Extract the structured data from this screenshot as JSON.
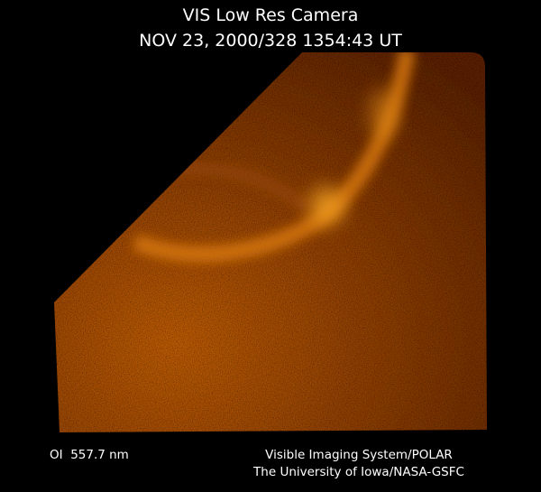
{
  "header": {
    "title": "VIS Low Res Camera",
    "timestamp": "NOV 23, 2000/328 1354:43 UT"
  },
  "footer": {
    "filter": "OI  557.7 nm",
    "credit_line1": "Visible Imaging System/POLAR",
    "credit_line2": "The University of Iowa/NASA-GSFC"
  }
}
